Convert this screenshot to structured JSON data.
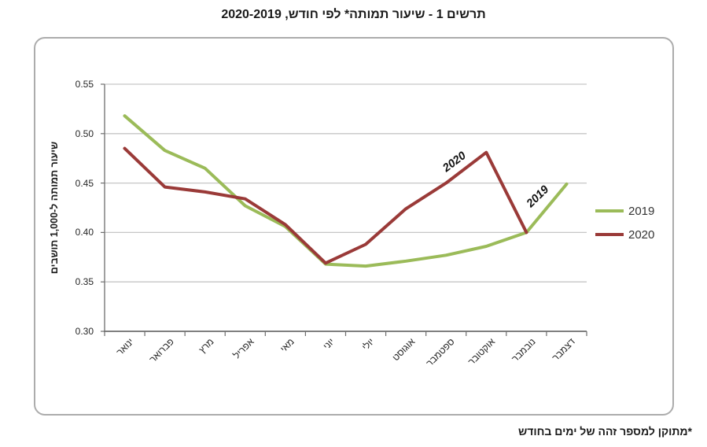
{
  "title": {
    "text": "תרשים 1 - שיעור תמותה* לפי חודש, 2020-2019"
  },
  "footnote": {
    "text": "*מתוקן למספר זהה של ימים בחודש"
  },
  "legend": {
    "items": [
      {
        "label": "2019",
        "color": "#9BBB59"
      },
      {
        "label": "2020",
        "color": "#9A3A38"
      }
    ]
  },
  "colors": {
    "grid": "#C6C6C6",
    "axis": "#6E6E6E",
    "frame_border": "#ACACAC",
    "series_2019": "#9BBB59",
    "series_2020": "#9A3A38"
  },
  "chart_data": {
    "type": "line",
    "title": "תרשים 1 - שיעור תמותה* לפי חודש, 2020-2019",
    "y_axis_title": "שיעור תמותה ל-1,000 תושבים",
    "xlabel": "",
    "ylabel": "שיעור תמותה ל-1,000 תושבים",
    "categories": [
      "ינואר",
      "פברואר",
      "מרץ",
      "אפריל",
      "מאי",
      "יוני",
      "יולי",
      "אוגוסט",
      "ספטמבר",
      "אוקטובר",
      "נובמבר",
      "דצמבר"
    ],
    "series": [
      {
        "name": "2019",
        "color": "#9BBB59",
        "values": [
          0.518,
          0.483,
          0.465,
          0.427,
          0.406,
          0.368,
          0.366,
          0.371,
          0.377,
          0.386,
          0.4,
          0.449
        ]
      },
      {
        "name": "2020",
        "color": "#9A3A38",
        "values": [
          0.485,
          0.446,
          0.441,
          0.434,
          0.408,
          0.369,
          0.388,
          0.424,
          0.45,
          0.481,
          0.4,
          null
        ]
      }
    ],
    "ylim": [
      0.3,
      0.55
    ],
    "y_tick_step": 0.05,
    "y_tick_labels": [
      "0.30",
      "0.35",
      "0.40",
      "0.45",
      "0.50",
      "0.55"
    ],
    "grid": true,
    "legend_position": "right-middle",
    "inline_series_labels": [
      "2020",
      "2019"
    ]
  }
}
